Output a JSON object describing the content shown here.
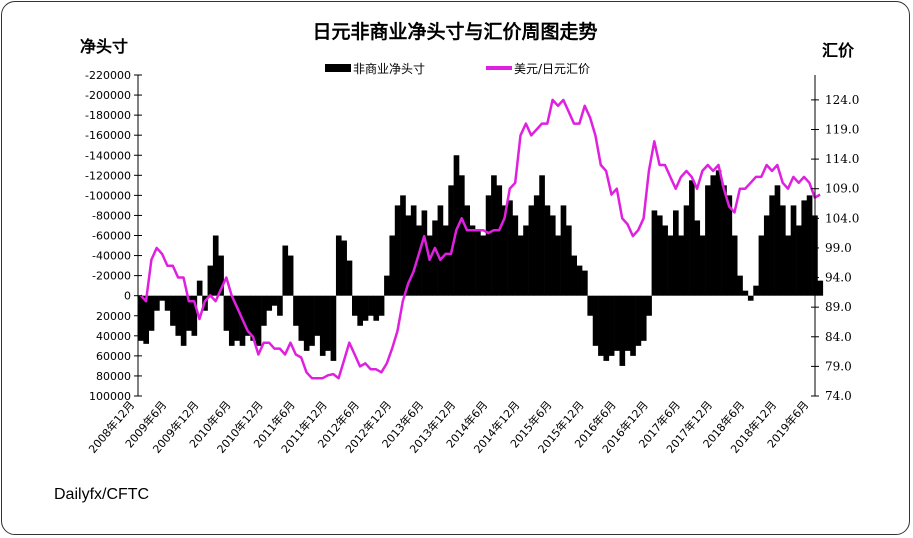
{
  "chart_data": {
    "type": "bar+line",
    "title": "日元非商业净头寸与汇价周图走势",
    "ylabel_left": "净头寸",
    "ylabel_right": "汇价",
    "source": "Dailyfx/CFTC",
    "legend": {
      "placement": "top-center",
      "entries": [
        "非商业净头寸",
        "美元/日元汇价"
      ]
    },
    "colors": {
      "bars": "#000000",
      "line": "#e020e0"
    },
    "ylim_left": [
      100000,
      -220000
    ],
    "yticks_left": [
      "-220000",
      "-200000",
      "-180000",
      "-160000",
      "-140000",
      "-120000",
      "-100000",
      "-80000",
      "-60000",
      "-40000",
      "-20000",
      "0",
      "20000",
      "40000",
      "60000",
      "80000",
      "100000"
    ],
    "ylim_right": [
      74.0,
      128.2
    ],
    "yticks_right": [
      "124.0",
      "119.0",
      "114.0",
      "109.0",
      "104.0",
      "99.0",
      "94.0",
      "89.0",
      "84.0",
      "79.0",
      "74.0"
    ],
    "xticks": [
      "2008年12月",
      "2009年6月",
      "2009年12月",
      "2010年6月",
      "2010年12月",
      "2011年6月",
      "2011年12月",
      "2012年6月",
      "2012年12月",
      "2013年6月",
      "2013年12月",
      "2014年6月",
      "2014年12月",
      "2015年6月",
      "2015年12月",
      "2016年6月",
      "2016年12月",
      "2017年6月",
      "2017年12月",
      "2018年6月",
      "2018年12月",
      "2019年6月"
    ],
    "x": [
      "2008-12",
      "2009-01",
      "2009-02",
      "2009-03",
      "2009-04",
      "2009-05",
      "2009-06",
      "2009-07",
      "2009-08",
      "2009-09",
      "2009-10",
      "2009-11",
      "2009-12",
      "2010-01",
      "2010-02",
      "2010-03",
      "2010-04",
      "2010-05",
      "2010-06",
      "2010-07",
      "2010-08",
      "2010-09",
      "2010-10",
      "2010-11",
      "2010-12",
      "2011-01",
      "2011-02",
      "2011-03",
      "2011-04",
      "2011-05",
      "2011-06",
      "2011-07",
      "2011-08",
      "2011-09",
      "2011-10",
      "2011-11",
      "2011-12",
      "2012-01",
      "2012-02",
      "2012-03",
      "2012-04",
      "2012-05",
      "2012-06",
      "2012-07",
      "2012-08",
      "2012-09",
      "2012-10",
      "2012-11",
      "2012-12",
      "2013-01",
      "2013-02",
      "2013-03",
      "2013-04",
      "2013-05",
      "2013-06",
      "2013-07",
      "2013-08",
      "2013-09",
      "2013-10",
      "2013-11",
      "2013-12",
      "2014-01",
      "2014-02",
      "2014-03",
      "2014-04",
      "2014-05",
      "2014-06",
      "2014-07",
      "2014-08",
      "2014-09",
      "2014-10",
      "2014-11",
      "2014-12",
      "2015-01",
      "2015-02",
      "2015-03",
      "2015-04",
      "2015-05",
      "2015-06",
      "2015-07",
      "2015-08",
      "2015-09",
      "2015-10",
      "2015-11",
      "2015-12",
      "2016-01",
      "2016-02",
      "2016-03",
      "2016-04",
      "2016-05",
      "2016-06",
      "2016-07",
      "2016-08",
      "2016-09",
      "2016-10",
      "2016-11",
      "2016-12",
      "2017-01",
      "2017-02",
      "2017-03",
      "2017-04",
      "2017-05",
      "2017-06",
      "2017-07",
      "2017-08",
      "2017-09",
      "2017-10",
      "2017-11",
      "2017-12",
      "2018-01",
      "2018-02",
      "2018-03",
      "2018-04",
      "2018-05",
      "2018-06",
      "2018-07",
      "2018-08",
      "2018-09",
      "2018-10",
      "2018-11",
      "2018-12",
      "2019-01",
      "2019-02",
      "2019-03",
      "2019-04",
      "2019-05",
      "2019-06",
      "2019-07"
    ],
    "series": [
      {
        "name": "非商业净头寸",
        "type": "bar",
        "axis": "left",
        "values": [
          45000,
          48000,
          35000,
          15000,
          5000,
          15000,
          30000,
          40000,
          50000,
          35000,
          40000,
          -15000,
          15000,
          -30000,
          -60000,
          -40000,
          35000,
          50000,
          45000,
          50000,
          40000,
          45000,
          50000,
          30000,
          15000,
          10000,
          20000,
          -50000,
          -40000,
          30000,
          45000,
          55000,
          50000,
          40000,
          60000,
          55000,
          65000,
          -60000,
          -55000,
          -35000,
          20000,
          30000,
          25000,
          20000,
          25000,
          20000,
          -20000,
          -60000,
          -90000,
          -100000,
          -80000,
          -90000,
          -70000,
          -85000,
          -60000,
          -75000,
          -90000,
          -70000,
          -110000,
          -140000,
          -120000,
          -90000,
          -70000,
          -65000,
          -60000,
          -100000,
          -120000,
          -110000,
          -90000,
          -95000,
          -80000,
          -60000,
          -70000,
          -90000,
          -100000,
          -120000,
          -90000,
          -80000,
          -60000,
          -90000,
          -70000,
          -40000,
          -30000,
          -25000,
          20000,
          50000,
          60000,
          65000,
          60000,
          55000,
          70000,
          55000,
          60000,
          50000,
          45000,
          20000,
          -85000,
          -80000,
          -70000,
          -60000,
          -85000,
          -60000,
          -90000,
          -115000,
          -75000,
          -60000,
          -110000,
          -120000,
          -125000,
          -110000,
          -100000,
          -60000,
          -20000,
          -5000,
          5000,
          -10000,
          -60000,
          -80000,
          -100000,
          -110000,
          -90000,
          -60000,
          -90000,
          -70000,
          -95000,
          -100000,
          -80000,
          -15000
        ]
      },
      {
        "name": "美元/日元汇价",
        "type": "line",
        "axis": "right",
        "values": [
          91,
          90,
          97,
          99,
          98,
          96,
          96,
          94,
          94,
          90,
          90,
          87,
          90,
          91,
          90,
          92,
          94,
          91,
          89,
          87,
          85,
          84,
          81,
          83,
          83,
          82,
          82,
          81,
          83,
          81,
          80.5,
          78,
          77,
          77,
          77,
          77.5,
          77.7,
          77,
          80,
          83,
          81,
          79,
          79.5,
          78.5,
          78.5,
          78,
          79.5,
          82,
          85,
          90,
          93,
          95,
          98,
          101,
          97,
          99,
          97,
          98,
          98,
          102,
          104,
          102,
          102,
          102,
          102,
          101.5,
          102,
          102,
          104,
          109,
          110,
          118,
          120,
          118,
          119,
          120,
          120,
          124,
          123,
          124,
          122,
          120,
          120,
          123,
          121,
          118,
          113,
          112,
          108,
          109,
          104,
          103,
          101,
          102,
          104,
          112,
          117,
          113,
          113,
          111,
          109,
          111,
          112,
          111,
          109,
          112,
          113,
          112,
          113,
          109,
          106,
          105,
          109,
          109,
          110,
          111,
          111,
          113,
          112,
          113,
          110,
          109,
          111,
          110,
          111,
          110,
          107.5,
          108
        ]
      }
    ]
  }
}
